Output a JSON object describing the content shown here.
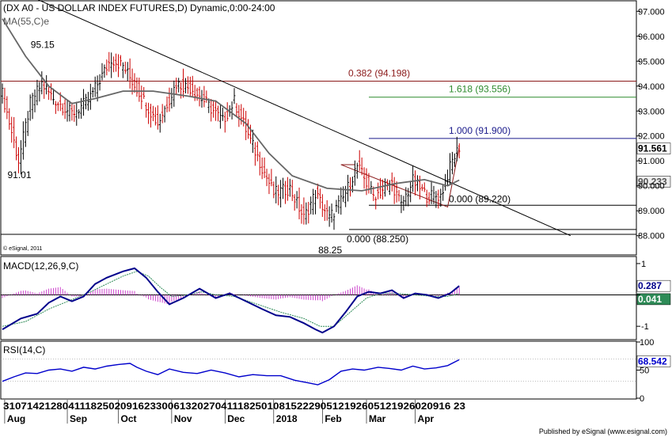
{
  "chart_data": [
    {
      "type": "line",
      "panel": "price",
      "title": "(DX A0 - US DOLLAR INDEX FUTURES,D) Dynamic,0:00-24:00",
      "ma_label": "MA(55,C)e",
      "watermark": "© eSignal, 2011",
      "y_ticks": [
        "97.000",
        "96.000",
        "95.000",
        "94.000",
        "93.000",
        "92.000",
        "91.000",
        "90.000",
        "89.000",
        "88.000"
      ],
      "ylim": [
        87.8,
        97.2
      ],
      "price_badge": "91.561",
      "ma_badge": "90.233",
      "fib_levels": [
        {
          "label": "0.382 (94.198)",
          "value": 94.198,
          "color": "#8b1a1a"
        },
        {
          "label": "1.618 (93.556)",
          "value": 93.556,
          "color": "#2e8b2e"
        },
        {
          "label": "1.000 (91.900)",
          "value": 91.9,
          "color": "#1a1a8b"
        },
        {
          "label": "0.000 (89.220)",
          "value": 89.22,
          "color": "#000000"
        },
        {
          "label": "0.000 (88.250)",
          "value": 88.25,
          "color": "#000000"
        }
      ],
      "annotations": [
        {
          "text": "95.15",
          "x": 17,
          "y": 95.15
        },
        {
          "text": "91.01",
          "x": 7,
          "y": 91.01
        },
        {
          "text": "88.25",
          "x": 141,
          "y": 88.25
        }
      ],
      "ohlc_guide": [
        [
          0,
          93.7
        ],
        [
          7,
          91.0
        ],
        [
          12,
          93.3
        ],
        [
          17,
          94.1
        ],
        [
          22,
          93.5
        ],
        [
          30,
          92.9
        ],
        [
          37,
          93.4
        ],
        [
          47,
          95.1
        ],
        [
          52,
          94.8
        ],
        [
          60,
          93.6
        ],
        [
          67,
          92.5
        ],
        [
          75,
          94.1
        ],
        [
          82,
          93.9
        ],
        [
          95,
          92.6
        ],
        [
          100,
          93.4
        ],
        [
          107,
          91.8
        ],
        [
          117,
          89.7
        ],
        [
          124,
          89.9
        ],
        [
          130,
          88.7
        ],
        [
          135,
          89.7
        ],
        [
          141,
          88.7
        ],
        [
          147,
          89.5
        ],
        [
          153,
          90.8
        ],
        [
          160,
          89.6
        ],
        [
          168,
          90.1
        ],
        [
          172,
          89.2
        ],
        [
          177,
          90.2
        ],
        [
          183,
          89.6
        ],
        [
          189,
          89.6
        ],
        [
          194,
          91.0
        ],
        [
          197,
          91.56
        ]
      ],
      "ma_series": [
        [
          0,
          96.7
        ],
        [
          10,
          95.2
        ],
        [
          20,
          94.0
        ],
        [
          30,
          93.3
        ],
        [
          40,
          93.5
        ],
        [
          52,
          93.8
        ],
        [
          65,
          93.8
        ],
        [
          80,
          93.6
        ],
        [
          92,
          93.4
        ],
        [
          105,
          92.5
        ],
        [
          115,
          91.3
        ],
        [
          125,
          90.4
        ],
        [
          140,
          89.9
        ],
        [
          155,
          89.8
        ],
        [
          170,
          90.1
        ],
        [
          182,
          90.25
        ],
        [
          192,
          90.0
        ],
        [
          197,
          90.23
        ]
      ],
      "trendline": [
        [
          0,
          98.1
        ],
        [
          245,
          88.0
        ]
      ],
      "fib_triangle": [
        [
          146,
          90.85
        ],
        [
          192,
          89.15
        ],
        [
          197,
          91.56
        ]
      ]
    },
    {
      "type": "line",
      "panel": "macd",
      "title": "MACD(12,26,9,C)",
      "y_ticks": [
        "1",
        "0",
        "-1"
      ],
      "ylim": [
        -1.4,
        1.2
      ],
      "macd_badge": "0.287",
      "signal_badge": "0.041",
      "macd_series": [
        [
          0,
          -1.1
        ],
        [
          8,
          -0.75
        ],
        [
          15,
          -0.6
        ],
        [
          20,
          -0.25
        ],
        [
          25,
          -0.05
        ],
        [
          30,
          -0.2
        ],
        [
          35,
          -0.05
        ],
        [
          40,
          0.35
        ],
        [
          45,
          0.55
        ],
        [
          52,
          0.75
        ],
        [
          57,
          0.85
        ],
        [
          62,
          0.55
        ],
        [
          67,
          0.1
        ],
        [
          72,
          -0.3
        ],
        [
          78,
          -0.1
        ],
        [
          85,
          0.2
        ],
        [
          92,
          -0.1
        ],
        [
          98,
          0.05
        ],
        [
          105,
          -0.2
        ],
        [
          112,
          -0.45
        ],
        [
          118,
          -0.65
        ],
        [
          124,
          -0.7
        ],
        [
          130,
          -0.9
        ],
        [
          135,
          -1.1
        ],
        [
          138,
          -1.2
        ],
        [
          143,
          -1.0
        ],
        [
          148,
          -0.55
        ],
        [
          153,
          -0.05
        ],
        [
          158,
          0.1
        ],
        [
          163,
          0.05
        ],
        [
          168,
          0.15
        ],
        [
          173,
          -0.1
        ],
        [
          178,
          0.05
        ],
        [
          183,
          0.0
        ],
        [
          188,
          -0.1
        ],
        [
          193,
          0.05
        ],
        [
          197,
          0.287
        ]
      ],
      "signal_series": [
        [
          0,
          -1.0
        ],
        [
          10,
          -0.85
        ],
        [
          20,
          -0.45
        ],
        [
          30,
          -0.15
        ],
        [
          38,
          0.1
        ],
        [
          45,
          0.35
        ],
        [
          52,
          0.6
        ],
        [
          58,
          0.75
        ],
        [
          63,
          0.6
        ],
        [
          68,
          0.25
        ],
        [
          73,
          -0.05
        ],
        [
          80,
          0.0
        ],
        [
          86,
          0.1
        ],
        [
          92,
          0.0
        ],
        [
          100,
          -0.05
        ],
        [
          110,
          -0.3
        ],
        [
          120,
          -0.55
        ],
        [
          130,
          -0.75
        ],
        [
          137,
          -1.0
        ],
        [
          143,
          -1.0
        ],
        [
          150,
          -0.55
        ],
        [
          157,
          -0.1
        ],
        [
          163,
          0.05
        ],
        [
          170,
          0.05
        ],
        [
          178,
          0.0
        ],
        [
          186,
          -0.05
        ],
        [
          192,
          -0.05
        ],
        [
          197,
          0.041
        ]
      ]
    },
    {
      "type": "line",
      "panel": "rsi",
      "title": "RSI(14,C)",
      "y_ticks": [
        "100",
        "50",
        "0"
      ],
      "ylim": [
        0,
        100
      ],
      "rsi_badge": "68.542",
      "rsi_series": [
        [
          0,
          30
        ],
        [
          5,
          38
        ],
        [
          10,
          45
        ],
        [
          15,
          44
        ],
        [
          20,
          50
        ],
        [
          25,
          52
        ],
        [
          30,
          48
        ],
        [
          35,
          55
        ],
        [
          40,
          52
        ],
        [
          45,
          57
        ],
        [
          50,
          60
        ],
        [
          55,
          62
        ],
        [
          58,
          55
        ],
        [
          62,
          48
        ],
        [
          67,
          42
        ],
        [
          72,
          52
        ],
        [
          78,
          46
        ],
        [
          84,
          44
        ],
        [
          90,
          50
        ],
        [
          96,
          45
        ],
        [
          102,
          38
        ],
        [
          108,
          42
        ],
        [
          114,
          40
        ],
        [
          120,
          40
        ],
        [
          126,
          32
        ],
        [
          131,
          28
        ],
        [
          136,
          24
        ],
        [
          141,
          33
        ],
        [
          146,
          48
        ],
        [
          151,
          52
        ],
        [
          156,
          50
        ],
        [
          162,
          55
        ],
        [
          167,
          53
        ],
        [
          172,
          50
        ],
        [
          177,
          57
        ],
        [
          182,
          52
        ],
        [
          187,
          54
        ],
        [
          192,
          58
        ],
        [
          197,
          68.5
        ]
      ]
    }
  ],
  "x_axis": {
    "day_labels": "3107142128041118250209162330061320270411182501081522290512192605121926020916 23",
    "month_labels": [
      {
        "text": "Aug",
        "x": 1
      },
      {
        "text": "Sep",
        "x": 28
      },
      {
        "text": "Oct",
        "x": 50
      },
      {
        "text": "Nov",
        "x": 73
      },
      {
        "text": "Dec",
        "x": 96
      },
      {
        "text": "2018",
        "x": 117
      },
      {
        "text": "Feb",
        "x": 138
      },
      {
        "text": "Mar",
        "x": 157
      },
      {
        "text": "Apr",
        "x": 178
      }
    ]
  },
  "footer": "Published by eSignal (www.esignal.com)"
}
